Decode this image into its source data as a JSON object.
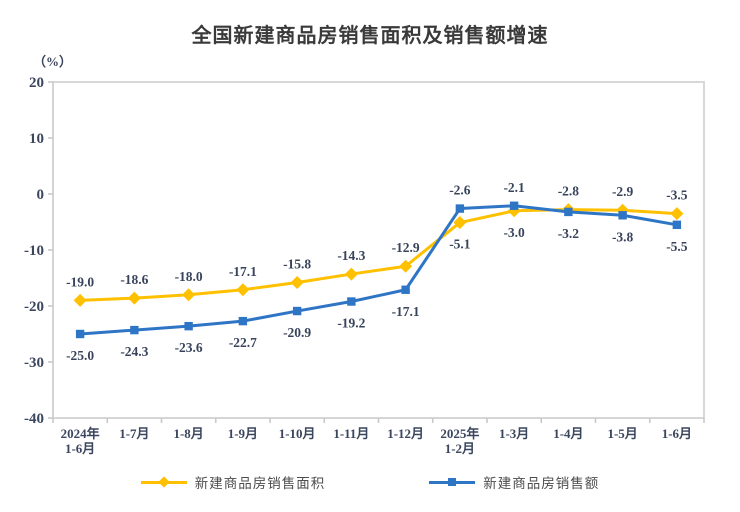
{
  "title": "全国新建商品房销售面积及销售额增速",
  "chart_data": {
    "type": "line",
    "title": "全国新建商品房销售面积及销售额增速",
    "ylabel": "（%）",
    "categories": [
      "2024年\n1-6月",
      "1-7月",
      "1-8月",
      "1-9月",
      "1-10月",
      "1-11月",
      "1-12月",
      "2025年\n1-2月",
      "1-3月",
      "1-4月",
      "1-5月",
      "1-6月"
    ],
    "series": [
      {
        "name": "新建商品房销售面积",
        "color": "#FFC000",
        "marker": "diamond",
        "values": [
          -19.0,
          -18.6,
          -18.0,
          -17.1,
          -15.8,
          -14.3,
          -12.9,
          -5.1,
          -3.0,
          -2.8,
          -2.9,
          -3.5
        ]
      },
      {
        "name": "新建商品房销售额",
        "color": "#2E75C6",
        "marker": "square",
        "values": [
          -25.0,
          -24.3,
          -23.6,
          -22.7,
          -20.9,
          -19.2,
          -17.1,
          -2.6,
          -2.1,
          -3.2,
          -3.8,
          -5.5
        ]
      }
    ],
    "ylim": [
      -40,
      20
    ],
    "ytick_step": 10,
    "grid": false,
    "value_labels": true,
    "legend_position": "bottom"
  },
  "colors": {
    "axis_line": "#c9c9c9",
    "plot_border": "#d8d8d8",
    "tick_text": "#3a455e",
    "value_text": "#39445c",
    "title_text": "#3a3a3a",
    "legend_text": "#4d4d4d"
  }
}
